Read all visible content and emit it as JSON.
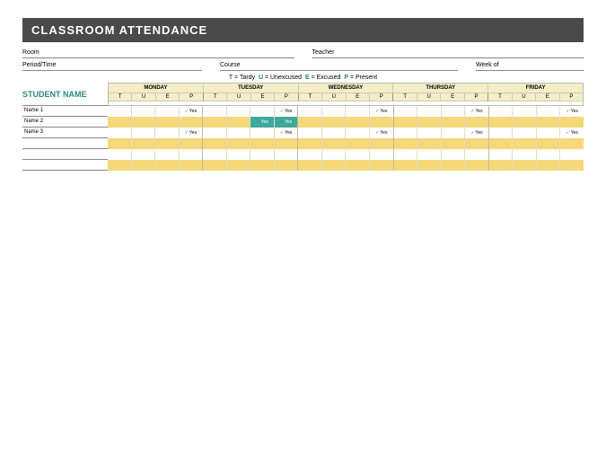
{
  "title": "CLASSROOM ATTENDANCE",
  "meta": {
    "room_label": "Room",
    "teacher_label": "Teacher",
    "period_label": "Period/Time",
    "course_label": "Course",
    "weekof_label": "Week of"
  },
  "legend": {
    "t": "T",
    "t_desc": "= Tardy",
    "u": "U",
    "u_desc": "= Unexcused",
    "e": "E",
    "e_desc": "= Excused",
    "p": "P",
    "p_desc": "= Present"
  },
  "student_name_hdr": "STUDENT NAME",
  "days": [
    "MONDAY",
    "TUESDAY",
    "WEDNESDAY",
    "THURSDAY",
    "FRIDAY"
  ],
  "cols": [
    "T",
    "U",
    "E",
    "P"
  ],
  "yes": "Yes",
  "students": [
    {
      "name": "Name 1",
      "marks": {
        "0_3": "yes",
        "1_3": "yes",
        "2_3": "yes",
        "3_3": "yes",
        "4_3": "yes"
      }
    },
    {
      "name": "Name 2",
      "marks": {
        "1_2": "yes_hl",
        "1_3": "yes_hl"
      }
    },
    {
      "name": "Name 3",
      "marks": {
        "0_3": "yes",
        "1_3": "yes",
        "2_3": "yes",
        "3_3": "yes",
        "4_3": "yes"
      }
    }
  ],
  "empty_rows": 3,
  "colors": {
    "titlebar": "#4a4a4a",
    "accent": "#2a8a7a",
    "banding": "#f4d87a",
    "header_bg": "#f5edc7",
    "highlight": "#3fa89a"
  }
}
